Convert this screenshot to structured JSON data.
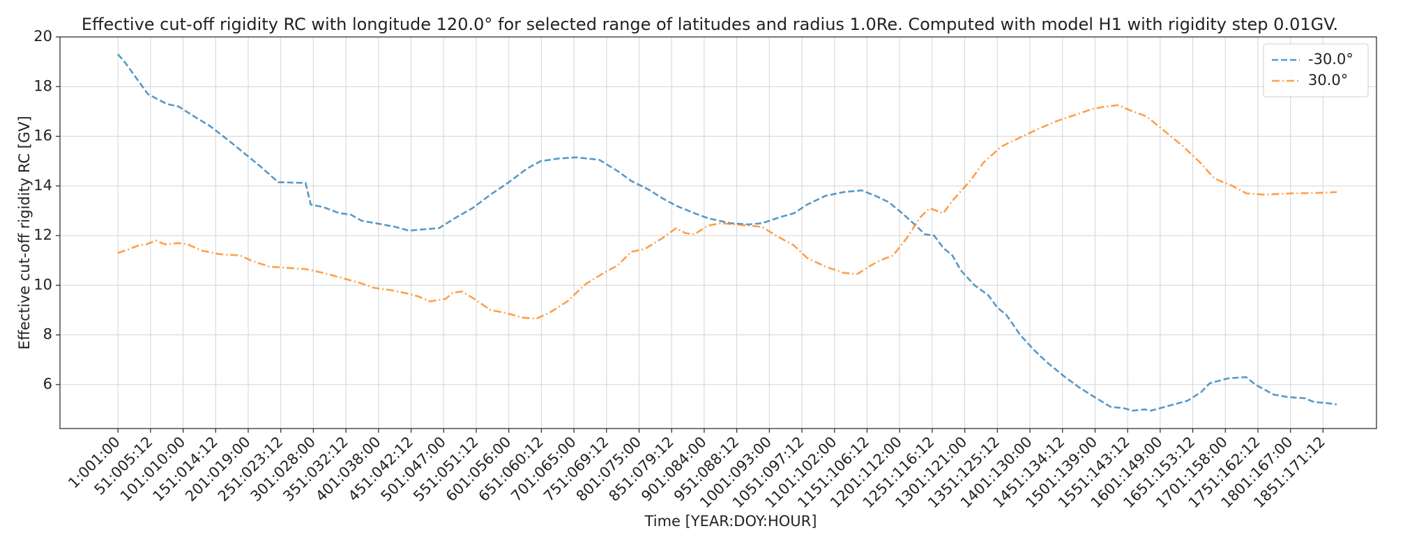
{
  "chart_data": {
    "type": "line",
    "title": "Effective cut-off rigidity RC with longitude 120.0° for selected range of latitudes and radius 1.0Re. Computed with model H1 with rigidity step 0.01GV.",
    "x_label": "Time [YEAR:DOY:HOUR]",
    "y_label": "Effective cut-off rigidity RC [GV]",
    "xlim": [
      -88,
      1933
    ],
    "ylim": [
      4.23,
      20.0
    ],
    "yticks": [
      6,
      8,
      10,
      12,
      14,
      16,
      18,
      20
    ],
    "xticks": [
      {
        "value": 1,
        "label": "1:001:00"
      },
      {
        "value": 51,
        "label": "51:005:12"
      },
      {
        "value": 101,
        "label": "101:010:00"
      },
      {
        "value": 151,
        "label": "151:014:12"
      },
      {
        "value": 201,
        "label": "201:019:00"
      },
      {
        "value": 251,
        "label": "251:023:12"
      },
      {
        "value": 301,
        "label": "301:028:00"
      },
      {
        "value": 351,
        "label": "351:032:12"
      },
      {
        "value": 401,
        "label": "401:038:00"
      },
      {
        "value": 451,
        "label": "451:042:12"
      },
      {
        "value": 501,
        "label": "501:047:00"
      },
      {
        "value": 551,
        "label": "551:051:12"
      },
      {
        "value": 601,
        "label": "601:056:00"
      },
      {
        "value": 651,
        "label": "651:060:12"
      },
      {
        "value": 701,
        "label": "701:065:00"
      },
      {
        "value": 751,
        "label": "751:069:12"
      },
      {
        "value": 801,
        "label": "801:075:00"
      },
      {
        "value": 851,
        "label": "851:079:12"
      },
      {
        "value": 901,
        "label": "901:084:00"
      },
      {
        "value": 951,
        "label": "951:088:12"
      },
      {
        "value": 1001,
        "label": "1001:093:00"
      },
      {
        "value": 1051,
        "label": "1051:097:12"
      },
      {
        "value": 1101,
        "label": "1101:102:00"
      },
      {
        "value": 1151,
        "label": "1151:106:12"
      },
      {
        "value": 1201,
        "label": "1201:112:00"
      },
      {
        "value": 1251,
        "label": "1251:116:12"
      },
      {
        "value": 1301,
        "label": "1301:121:00"
      },
      {
        "value": 1351,
        "label": "1351:125:12"
      },
      {
        "value": 1401,
        "label": "1401:130:00"
      },
      {
        "value": 1451,
        "label": "1451:134:12"
      },
      {
        "value": 1501,
        "label": "1501:139:00"
      },
      {
        "value": 1551,
        "label": "1551:143:12"
      },
      {
        "value": 1601,
        "label": "1601:149:00"
      },
      {
        "value": 1651,
        "label": "1651:153:12"
      },
      {
        "value": 1701,
        "label": "1701:158:00"
      },
      {
        "value": 1751,
        "label": "1751:162:12"
      },
      {
        "value": 1801,
        "label": "1801:167:00"
      },
      {
        "value": 1851,
        "label": "1851:171:12"
      }
    ],
    "grid": true,
    "legend": "upper right",
    "series": [
      {
        "name": "-30.0°",
        "color": "#1f77b4",
        "dash": "dashed",
        "x": [
          1,
          11,
          47,
          76,
          94,
          115,
          143,
          177,
          219,
          247,
          289,
          297,
          316,
          341,
          358,
          375,
          407,
          427,
          448,
          469,
          494,
          518,
          545,
          573,
          601,
          629,
          650,
          677,
          705,
          740,
          768,
          789,
          816,
          837,
          858,
          886,
          907,
          941,
          969,
          990,
          1018,
          1039,
          1059,
          1087,
          1115,
          1143,
          1164,
          1184,
          1205,
          1226,
          1240,
          1254,
          1268,
          1282,
          1295,
          1316,
          1337,
          1351,
          1365,
          1386,
          1407,
          1427,
          1455,
          1476,
          1497,
          1525,
          1545,
          1559,
          1577,
          1587,
          1601,
          1622,
          1643,
          1664,
          1677,
          1705,
          1733,
          1747,
          1775,
          1796,
          1823,
          1837,
          1858,
          1872
        ],
        "values": [
          19.3,
          19.0,
          17.7,
          17.3,
          17.2,
          16.85,
          16.4,
          15.7,
          14.8,
          14.15,
          14.12,
          13.25,
          13.15,
          12.9,
          12.85,
          12.6,
          12.45,
          12.35,
          12.2,
          12.25,
          12.3,
          12.7,
          13.1,
          13.65,
          14.15,
          14.7,
          15.0,
          15.1,
          15.15,
          15.05,
          14.6,
          14.2,
          13.85,
          13.5,
          13.2,
          12.9,
          12.7,
          12.5,
          12.45,
          12.5,
          12.75,
          12.9,
          13.25,
          13.6,
          13.75,
          13.82,
          13.6,
          13.35,
          12.9,
          12.4,
          12.05,
          12.0,
          11.5,
          11.2,
          10.6,
          10.0,
          9.6,
          9.1,
          8.8,
          8.0,
          7.4,
          6.9,
          6.3,
          5.9,
          5.55,
          5.1,
          5.05,
          4.95,
          5.0,
          4.95,
          5.05,
          5.2,
          5.35,
          5.7,
          6.05,
          6.25,
          6.3,
          6.0,
          5.6,
          5.5,
          5.45,
          5.3,
          5.25,
          5.2
        ]
      },
      {
        "name": "30.0°",
        "color": "#ff7f0e",
        "dash": "dashdot",
        "x": [
          1,
          18,
          32,
          45,
          59,
          73,
          94,
          108,
          129,
          157,
          189,
          205,
          233,
          261,
          289,
          316,
          344,
          372,
          393,
          421,
          448,
          462,
          480,
          504,
          515,
          529,
          545,
          573,
          594,
          622,
          643,
          664,
          691,
          719,
          747,
          768,
          789,
          809,
          837,
          858,
          872,
          886,
          907,
          927,
          948,
          969,
          990,
          1011,
          1039,
          1059,
          1087,
          1115,
          1136,
          1157,
          1171,
          1191,
          1212,
          1233,
          1247,
          1258,
          1268,
          1282,
          1309,
          1330,
          1358,
          1386,
          1414,
          1441,
          1469,
          1497,
          1518,
          1536,
          1559,
          1580,
          1608,
          1636,
          1664,
          1684,
          1712,
          1733,
          1761,
          1803,
          1844,
          1872
        ],
        "values": [
          11.3,
          11.45,
          11.6,
          11.65,
          11.8,
          11.65,
          11.7,
          11.65,
          11.4,
          11.25,
          11.2,
          11.0,
          10.75,
          10.7,
          10.65,
          10.5,
          10.3,
          10.1,
          9.9,
          9.8,
          9.65,
          9.55,
          9.35,
          9.45,
          9.7,
          9.75,
          9.5,
          9.0,
          8.9,
          8.7,
          8.65,
          8.9,
          9.35,
          10.05,
          10.5,
          10.8,
          11.35,
          11.45,
          11.9,
          12.3,
          12.1,
          12.05,
          12.4,
          12.5,
          12.45,
          12.4,
          12.35,
          12.0,
          11.6,
          11.1,
          10.75,
          10.5,
          10.45,
          10.8,
          11.0,
          11.2,
          11.9,
          12.75,
          13.1,
          13.0,
          12.9,
          13.4,
          14.2,
          14.95,
          15.6,
          15.95,
          16.3,
          16.6,
          16.85,
          17.1,
          17.2,
          17.25,
          17.0,
          16.8,
          16.2,
          15.6,
          14.9,
          14.3,
          14.0,
          13.7,
          13.65,
          13.7,
          13.72,
          13.75
        ]
      }
    ]
  }
}
